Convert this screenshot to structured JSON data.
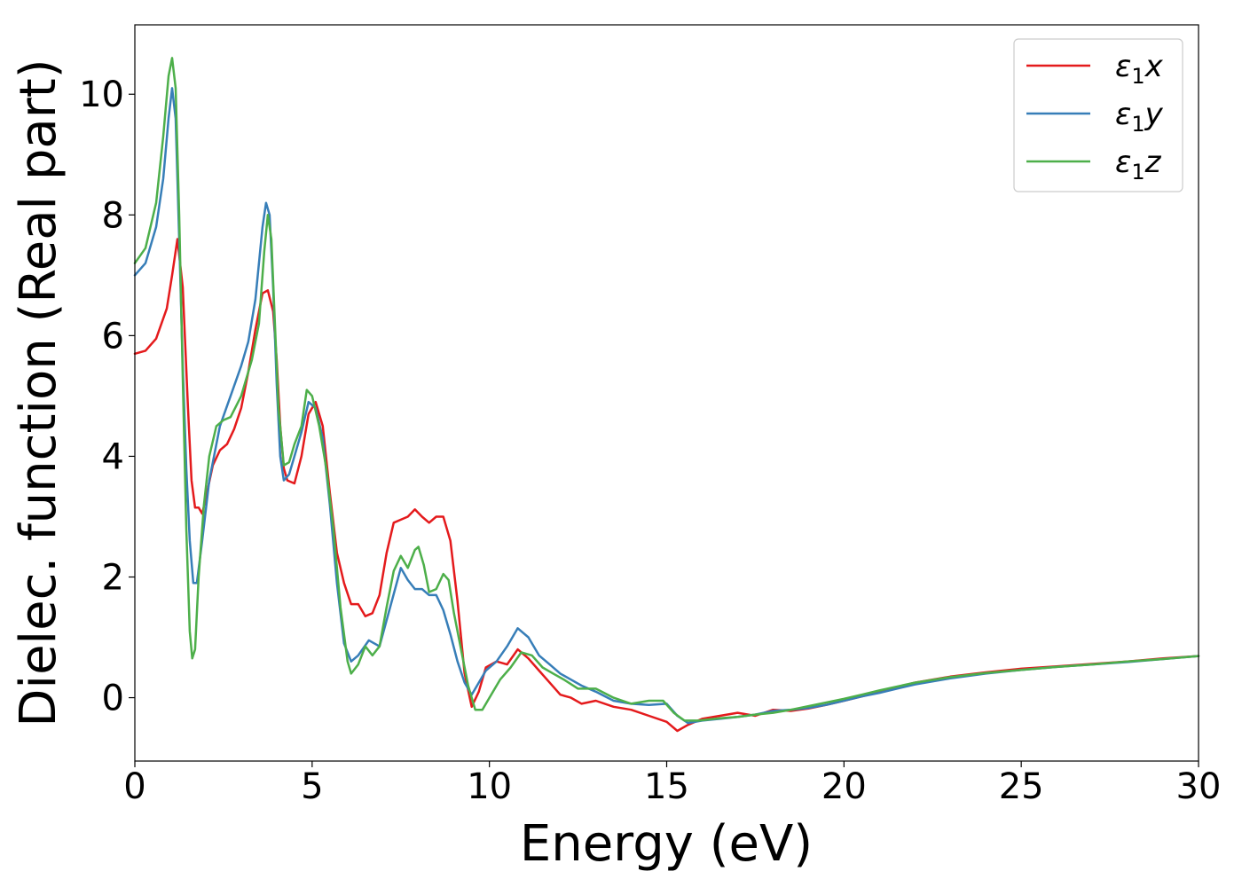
{
  "chart_data": {
    "type": "line",
    "title": "",
    "xlabel": "Energy (eV)",
    "ylabel": "Dielec. function (Real part)",
    "xlim": [
      0,
      30
    ],
    "ylim": [
      -1.05,
      11.15
    ],
    "xticks": [
      0,
      5,
      10,
      15,
      20,
      25,
      30
    ],
    "yticks": [
      0,
      2,
      4,
      6,
      8,
      10
    ],
    "grid": false,
    "legend_position": "top-right",
    "series": [
      {
        "name": "ε₁x",
        "legend": {
          "base": "ε",
          "sub": "1",
          "suffix": "x"
        },
        "color": "#e41a1c",
        "x": [
          0,
          0.3,
          0.6,
          0.9,
          1.05,
          1.2,
          1.35,
          1.5,
          1.6,
          1.7,
          1.8,
          1.9,
          2.0,
          2.2,
          2.4,
          2.6,
          2.8,
          3.0,
          3.2,
          3.4,
          3.6,
          3.75,
          3.9,
          4.0,
          4.1,
          4.2,
          4.3,
          4.5,
          4.7,
          4.9,
          5.1,
          5.3,
          5.5,
          5.7,
          5.9,
          6.1,
          6.3,
          6.5,
          6.7,
          6.9,
          7.1,
          7.3,
          7.5,
          7.7,
          7.9,
          8.1,
          8.3,
          8.5,
          8.7,
          8.9,
          9.1,
          9.3,
          9.5,
          9.7,
          9.9,
          10.2,
          10.5,
          10.8,
          11.1,
          11.4,
          11.7,
          12.0,
          12.3,
          12.6,
          13.0,
          13.5,
          14.0,
          14.5,
          15.0,
          15.3,
          15.6,
          16.0,
          16.5,
          17.0,
          17.5,
          18.0,
          18.5,
          19.0,
          19.5,
          20.0,
          20.5,
          21.0,
          22.0,
          23.0,
          24.0,
          25.0,
          26.0,
          27.0,
          28.0,
          29.0,
          30.0
        ],
        "y": [
          5.7,
          5.75,
          5.95,
          6.45,
          7.0,
          7.6,
          6.8,
          4.8,
          3.6,
          3.15,
          3.15,
          3.05,
          3.3,
          3.85,
          4.1,
          4.2,
          4.45,
          4.8,
          5.4,
          6.1,
          6.7,
          6.75,
          6.4,
          5.6,
          4.5,
          3.8,
          3.6,
          3.55,
          4.0,
          4.7,
          4.9,
          4.5,
          3.4,
          2.4,
          1.9,
          1.55,
          1.55,
          1.35,
          1.4,
          1.7,
          2.4,
          2.9,
          2.95,
          3.0,
          3.12,
          3.0,
          2.9,
          3.0,
          3.0,
          2.6,
          1.6,
          0.4,
          -0.15,
          0.1,
          0.5,
          0.6,
          0.55,
          0.8,
          0.65,
          0.45,
          0.25,
          0.05,
          0.0,
          -0.1,
          -0.05,
          -0.15,
          -0.2,
          -0.3,
          -0.4,
          -0.55,
          -0.45,
          -0.35,
          -0.3,
          -0.25,
          -0.3,
          -0.2,
          -0.22,
          -0.18,
          -0.12,
          -0.05,
          0.02,
          0.1,
          0.25,
          0.35,
          0.42,
          0.48,
          0.52,
          0.56,
          0.6,
          0.65,
          0.69
        ]
      },
      {
        "name": "ε₁y",
        "legend": {
          "base": "ε",
          "sub": "1",
          "suffix": "y"
        },
        "color": "#377eb8",
        "x": [
          0,
          0.3,
          0.6,
          0.8,
          0.95,
          1.05,
          1.15,
          1.25,
          1.35,
          1.45,
          1.55,
          1.65,
          1.75,
          1.9,
          2.1,
          2.4,
          2.7,
          3.0,
          3.2,
          3.4,
          3.6,
          3.7,
          3.8,
          3.9,
          4.0,
          4.1,
          4.2,
          4.35,
          4.5,
          4.7,
          4.9,
          5.1,
          5.3,
          5.5,
          5.7,
          5.9,
          6.1,
          6.3,
          6.6,
          6.9,
          7.2,
          7.5,
          7.7,
          7.9,
          8.1,
          8.3,
          8.5,
          8.7,
          8.9,
          9.1,
          9.3,
          9.5,
          9.7,
          9.9,
          10.2,
          10.5,
          10.8,
          11.1,
          11.4,
          11.7,
          12.0,
          12.3,
          12.6,
          13.0,
          13.5,
          14.0,
          14.5,
          15.0,
          15.3,
          15.6,
          16.0,
          16.5,
          17.0,
          17.5,
          18.0,
          18.5,
          19.0,
          19.5,
          20.0,
          20.5,
          21.0,
          22.0,
          23.0,
          24.0,
          25.0,
          26.0,
          27.0,
          28.0,
          29.0,
          30.0
        ],
        "y": [
          7.0,
          7.2,
          7.8,
          8.6,
          9.6,
          10.1,
          9.6,
          7.6,
          5.5,
          3.8,
          2.6,
          1.9,
          1.9,
          2.6,
          3.6,
          4.5,
          5.0,
          5.5,
          5.9,
          6.6,
          7.8,
          8.2,
          8.0,
          6.8,
          5.2,
          4.0,
          3.6,
          3.7,
          4.0,
          4.4,
          4.9,
          4.8,
          4.3,
          3.2,
          1.9,
          0.9,
          0.6,
          0.7,
          0.95,
          0.85,
          1.5,
          2.15,
          1.95,
          1.8,
          1.8,
          1.7,
          1.7,
          1.45,
          1.05,
          0.6,
          0.25,
          0.05,
          0.25,
          0.45,
          0.6,
          0.85,
          1.15,
          1.0,
          0.7,
          0.55,
          0.4,
          0.3,
          0.2,
          0.1,
          -0.05,
          -0.1,
          -0.12,
          -0.1,
          -0.3,
          -0.42,
          -0.38,
          -0.35,
          -0.32,
          -0.28,
          -0.22,
          -0.2,
          -0.17,
          -0.12,
          -0.05,
          0.02,
          0.08,
          0.22,
          0.32,
          0.4,
          0.46,
          0.51,
          0.55,
          0.59,
          0.64,
          0.69
        ]
      },
      {
        "name": "ε₁z",
        "legend": {
          "base": "ε",
          "sub": "1",
          "suffix": "z"
        },
        "color": "#4daf4a",
        "x": [
          0,
          0.3,
          0.6,
          0.8,
          0.95,
          1.05,
          1.15,
          1.25,
          1.35,
          1.45,
          1.55,
          1.62,
          1.7,
          1.8,
          1.95,
          2.1,
          2.3,
          2.5,
          2.7,
          3.0,
          3.3,
          3.5,
          3.65,
          3.75,
          3.85,
          3.95,
          4.05,
          4.2,
          4.35,
          4.5,
          4.7,
          4.85,
          5.0,
          5.2,
          5.4,
          5.6,
          5.8,
          6.0,
          6.1,
          6.3,
          6.5,
          6.7,
          6.9,
          7.1,
          7.3,
          7.5,
          7.7,
          7.9,
          8.0,
          8.15,
          8.3,
          8.5,
          8.7,
          8.85,
          9.0,
          9.2,
          9.4,
          9.6,
          9.8,
          10.0,
          10.3,
          10.6,
          10.9,
          11.2,
          11.5,
          11.8,
          12.1,
          12.5,
          13.0,
          13.5,
          14.0,
          14.5,
          14.9,
          15.2,
          15.5,
          15.9,
          16.5,
          17.0,
          17.5,
          18.0,
          18.5,
          19.0,
          19.5,
          20.0,
          20.5,
          21.0,
          22.0,
          23.0,
          24.0,
          25.0,
          26.0,
          27.0,
          28.0,
          29.0,
          30.0
        ],
        "y": [
          7.2,
          7.45,
          8.2,
          9.3,
          10.3,
          10.6,
          10.1,
          8.0,
          5.3,
          2.8,
          1.1,
          0.65,
          0.8,
          2.0,
          3.2,
          4.0,
          4.5,
          4.6,
          4.65,
          5.0,
          5.6,
          6.2,
          7.4,
          8.0,
          7.6,
          6.2,
          4.8,
          3.85,
          3.9,
          4.2,
          4.5,
          5.1,
          5.0,
          4.5,
          3.8,
          2.8,
          1.5,
          0.6,
          0.4,
          0.55,
          0.85,
          0.7,
          0.85,
          1.5,
          2.1,
          2.35,
          2.15,
          2.45,
          2.5,
          2.2,
          1.75,
          1.8,
          2.05,
          1.95,
          1.4,
          0.8,
          0.2,
          -0.2,
          -0.2,
          0.0,
          0.3,
          0.5,
          0.75,
          0.7,
          0.5,
          0.4,
          0.3,
          0.15,
          0.15,
          0.0,
          -0.1,
          -0.05,
          -0.05,
          -0.25,
          -0.38,
          -0.38,
          -0.34,
          -0.32,
          -0.28,
          -0.25,
          -0.2,
          -0.14,
          -0.08,
          -0.02,
          0.05,
          0.12,
          0.25,
          0.34,
          0.41,
          0.46,
          0.51,
          0.55,
          0.6,
          0.64,
          0.69
        ]
      }
    ]
  }
}
